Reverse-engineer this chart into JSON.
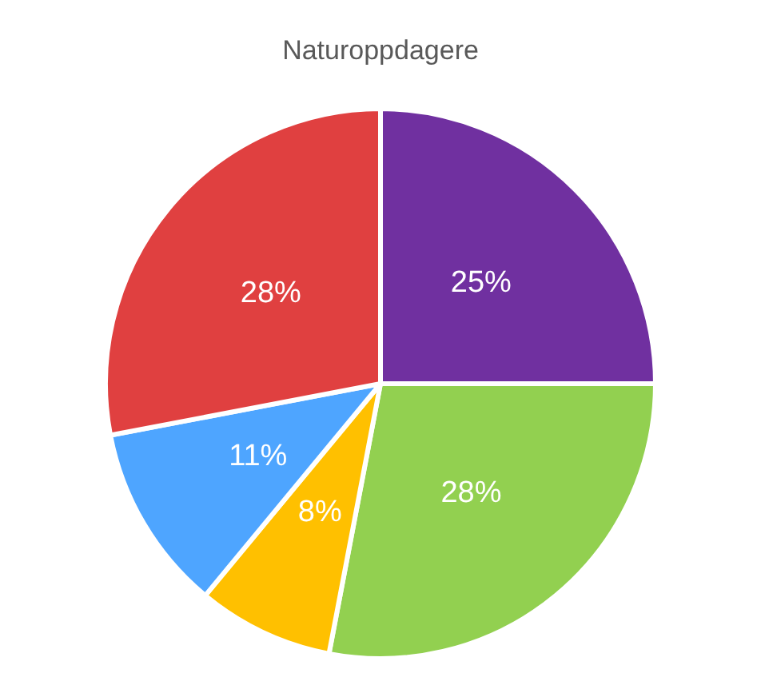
{
  "chart_data": {
    "type": "pie",
    "title": "Naturoppdagere",
    "categories": [
      null,
      null,
      null,
      null,
      null
    ],
    "values": [
      25,
      28,
      8,
      11,
      28
    ],
    "colors": [
      "#7030a0",
      "#92d050",
      "#ffc000",
      "#4ea5ff",
      "#e04040"
    ],
    "value_labels": [
      "25%",
      "28%",
      "8%",
      "11%",
      "28%"
    ]
  }
}
